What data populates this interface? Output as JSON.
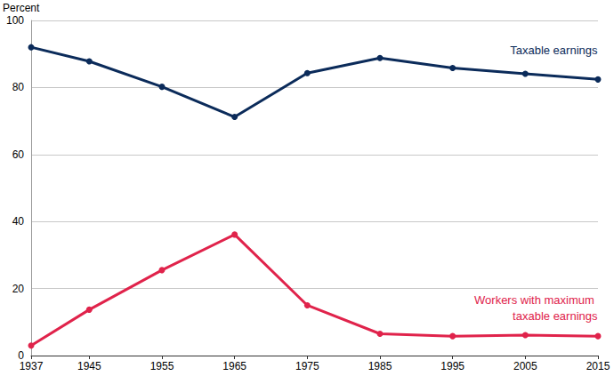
{
  "chart_data": {
    "type": "line",
    "ylabel": "Percent",
    "x": [
      1937,
      1945,
      1955,
      1965,
      1975,
      1985,
      1995,
      2005,
      2015
    ],
    "series": [
      {
        "name": "Taxable earnings",
        "color": "#0b2b5a",
        "values": [
          92.0,
          87.8,
          80.2,
          71.2,
          84.3,
          88.8,
          85.8,
          84.1,
          82.4
        ]
      },
      {
        "name": "Workers with maximum taxable earnings",
        "color": "#e0234b",
        "values": [
          3.0,
          13.7,
          25.5,
          36.1,
          15.0,
          6.5,
          5.8,
          6.1,
          5.8
        ]
      }
    ],
    "xlim": [
      1937,
      2015
    ],
    "xticks": [
      1937,
      1945,
      1955,
      1965,
      1975,
      1985,
      1995,
      2005,
      2015
    ],
    "ylim": [
      0,
      100
    ],
    "yticks": [
      0,
      20,
      40,
      60,
      80,
      100
    ],
    "grid": true,
    "marker": "circle"
  }
}
